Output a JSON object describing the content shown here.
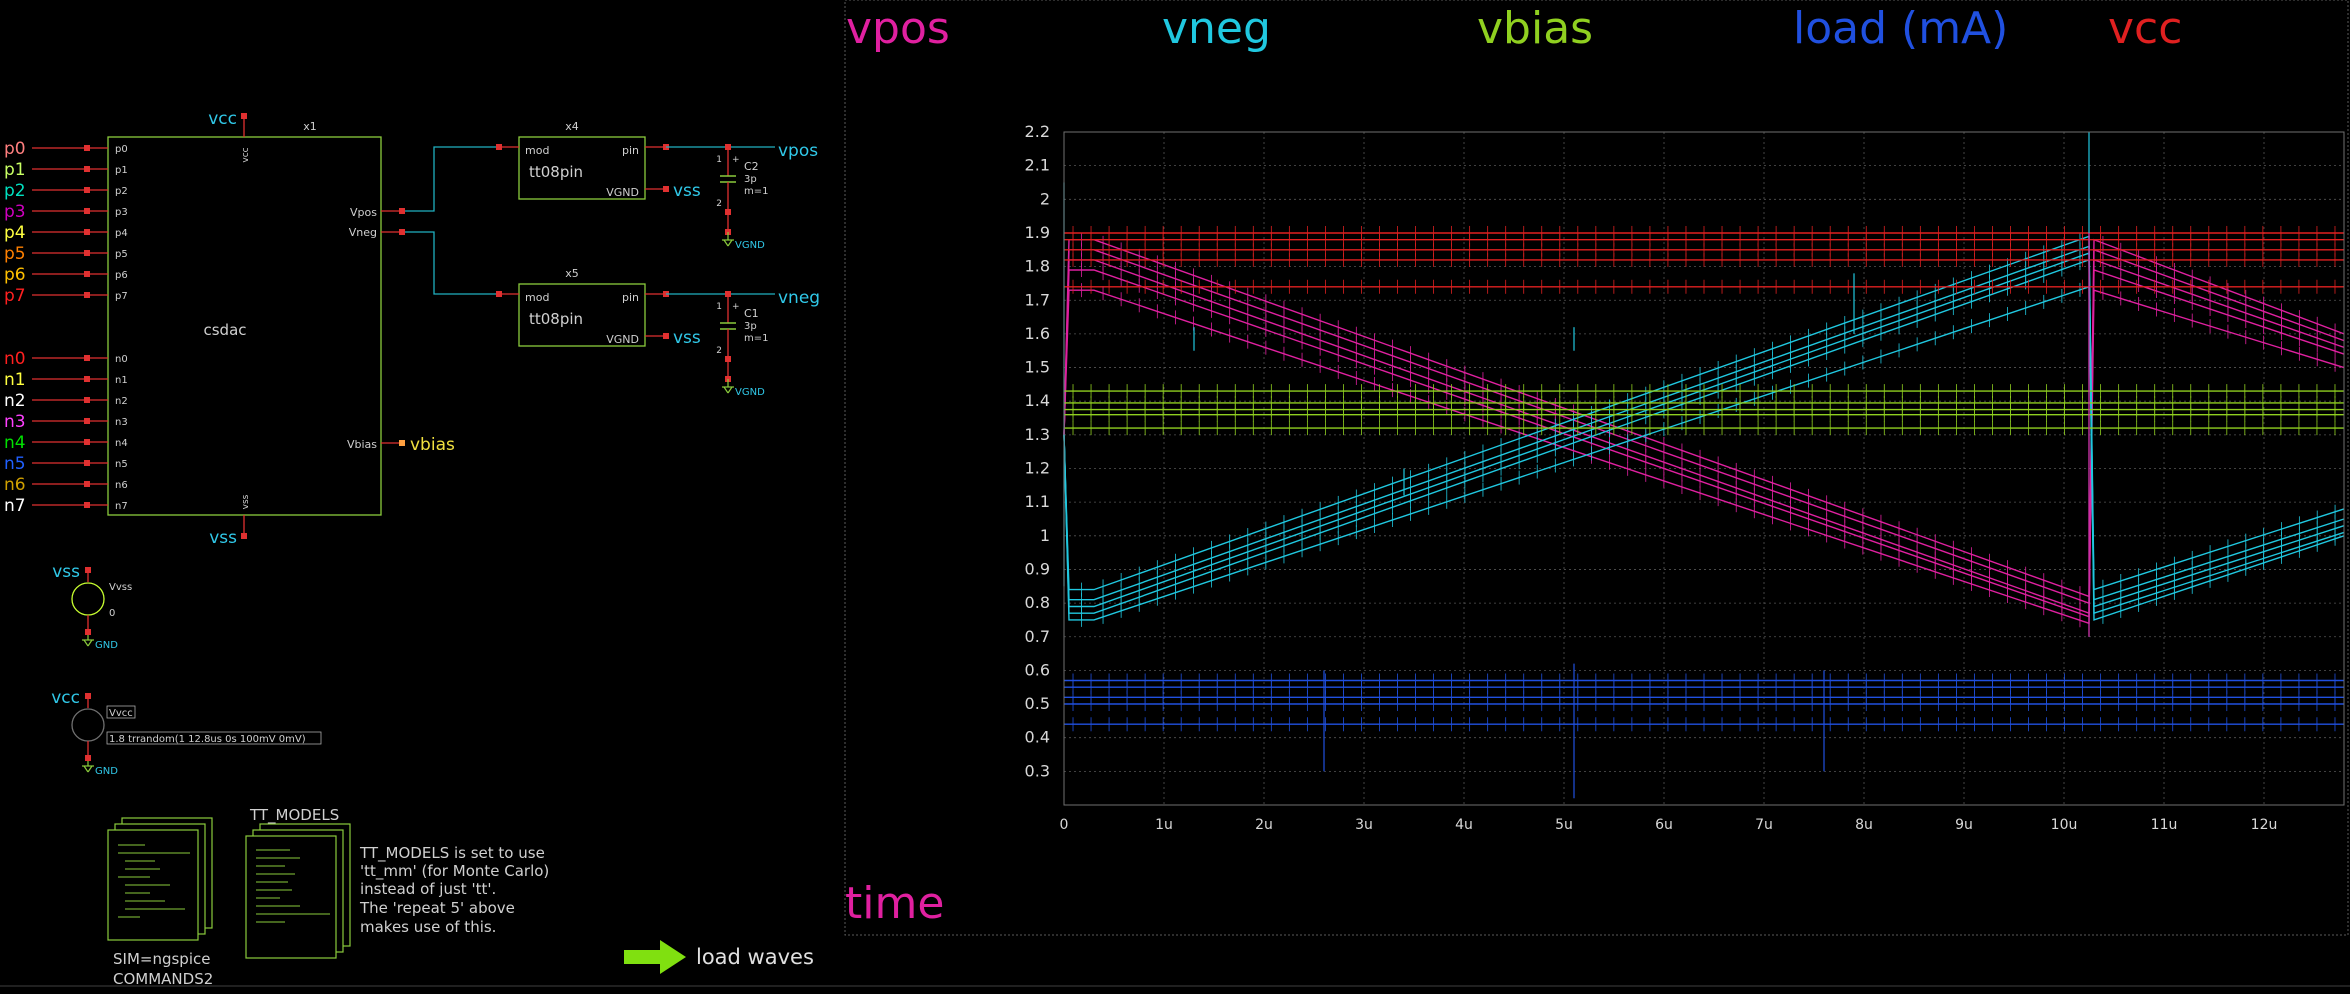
{
  "schematic": {
    "dac": {
      "name": "csdac",
      "instance": "x1",
      "p_pins": [
        "p0",
        "p1",
        "p2",
        "p3",
        "p4",
        "p5",
        "p6",
        "p7"
      ],
      "n_pins": [
        "n0",
        "n1",
        "n2",
        "n3",
        "n4",
        "n5",
        "n6",
        "n7"
      ],
      "p_labels": [
        "p0",
        "p1",
        "p2",
        "p3",
        "p4",
        "p5",
        "p6",
        "p7"
      ],
      "n_labels": [
        "n0",
        "n1",
        "n2",
        "n3",
        "n4",
        "n5",
        "n6",
        "n7"
      ],
      "p_colors": [
        "#ff7f7f",
        "#c8ff64",
        "#00e0c0",
        "#d000c0",
        "#ffff40",
        "#ff8000",
        "#ffc000",
        "#ff2020"
      ],
      "n_colors": [
        "#ff2020",
        "#ffff40",
        "#ffffff",
        "#ff40ff",
        "#00e000",
        "#2060ff",
        "#d0a000",
        "#ffffff"
      ],
      "vcc_pin": "vcc",
      "vss_pin": "vss",
      "vpos_pin": "Vpos",
      "vneg_pin": "Vneg",
      "vbias_pin": "Vbias",
      "vcc_label": "vcc",
      "vss_label": "vss",
      "vbias_label": "vbias"
    },
    "tt08_top": {
      "instance": "x4",
      "name": "tt08pin",
      "mod": "mod",
      "pin": "pin",
      "vgnd": "VGND",
      "vss_label": "vss",
      "out_label": "vpos"
    },
    "tt08_bot": {
      "instance": "x5",
      "name": "tt08pin",
      "mod": "mod",
      "pin": "pin",
      "vgnd": "VGND",
      "vss_label": "vss",
      "out_label": "vneg"
    },
    "cap_top": {
      "name": "C2",
      "value": "3p",
      "mult": "m=1",
      "gnd": "VGND",
      "pin1": "1",
      "pin2": "2",
      "plus": "+"
    },
    "cap_bot": {
      "name": "C1",
      "value": "3p",
      "mult": "m=1",
      "gnd": "VGND",
      "pin1": "1",
      "pin2": "2",
      "plus": "+"
    },
    "vss_source": {
      "net": "vss",
      "name": "Vvss",
      "value": "0",
      "gnd": "GND"
    },
    "vcc_source": {
      "net": "vcc",
      "name": "Vvcc",
      "value": "1.8 trrandom(1 12.8us 0s 100mV 0mV)",
      "gnd": "GND"
    },
    "tt_models": {
      "title": "TT_MODELS",
      "lines": [
        "TT_MODELS is set to use",
        "'tt_mm' (for Monte Carlo)",
        "instead of just 'tt'.",
        "The 'repeat 5' above",
        "makes use of this."
      ]
    },
    "sim": {
      "line1": "SIM=ngspice",
      "line2": "COMMANDS2"
    },
    "load_waves": "load waves"
  },
  "graph": {
    "legend": [
      {
        "name": "vpos",
        "color": "#e020a0"
      },
      {
        "name": "vneg",
        "color": "#20c8e0"
      },
      {
        "name": "vbias",
        "color": "#90d020"
      },
      {
        "name": "load (mA)",
        "color": "#2050e0"
      },
      {
        "name": "vcc",
        "color": "#e02020"
      }
    ],
    "time_label": "time"
  },
  "chart_data": {
    "type": "line",
    "title": "",
    "xlabel": "time",
    "ylabel": "",
    "xlim": [
      0,
      12.8
    ],
    "ylim": [
      0.2,
      2.2
    ],
    "x_ticks": [
      "0",
      "1u",
      "2u",
      "3u",
      "4u",
      "5u",
      "6u",
      "7u",
      "8u",
      "9u",
      "10u",
      "11u",
      "12u"
    ],
    "y_ticks": [
      "2.2",
      "2.1",
      "2",
      "1.9",
      "1.8",
      "1.7",
      "1.6",
      "1.5",
      "1.4",
      "1.3",
      "1.2",
      "1.1",
      "1",
      "0.9",
      "0.8",
      "0.7",
      "0.6",
      "0.5",
      "0.4",
      "0.3"
    ],
    "grid": true,
    "series": [
      {
        "name": "vpos",
        "color": "#e020a0",
        "runs": [
          {
            "x": [
              0,
              0.05,
              0.3,
              10.25,
              10.3,
              12.8
            ],
            "y": [
              1.3,
              1.88,
              1.88,
              0.82,
              1.88,
              1.6
            ]
          },
          {
            "x": [
              0,
              0.05,
              0.3,
              10.25,
              10.3,
              12.8
            ],
            "y": [
              1.3,
              1.85,
              1.85,
              0.8,
              1.85,
              1.58
            ]
          },
          {
            "x": [
              0,
              0.05,
              0.3,
              10.25,
              10.3,
              12.8
            ],
            "y": [
              1.3,
              1.82,
              1.82,
              0.77,
              1.82,
              1.56
            ]
          },
          {
            "x": [
              0,
              0.05,
              0.3,
              10.25,
              10.3,
              12.8
            ],
            "y": [
              1.3,
              1.79,
              1.79,
              0.76,
              1.79,
              1.54
            ]
          },
          {
            "x": [
              0,
              0.05,
              0.3,
              10.25,
              10.3,
              12.8
            ],
            "y": [
              1.3,
              1.73,
              1.73,
              0.74,
              1.73,
              1.5
            ]
          }
        ]
      },
      {
        "name": "vneg",
        "color": "#20c8e0",
        "runs": [
          {
            "x": [
              0,
              0.05,
              0.3,
              10.25,
              10.3,
              12.8
            ],
            "y": [
              1.3,
              0.84,
              0.84,
              1.89,
              0.84,
              1.08
            ]
          },
          {
            "x": [
              0,
              0.05,
              0.3,
              10.25,
              10.3,
              12.8
            ],
            "y": [
              1.3,
              0.81,
              0.81,
              1.86,
              0.81,
              1.05
            ]
          },
          {
            "x": [
              0,
              0.05,
              0.3,
              10.25,
              10.3,
              12.8
            ],
            "y": [
              1.3,
              0.79,
              0.79,
              1.84,
              0.79,
              1.03
            ]
          },
          {
            "x": [
              0,
              0.05,
              0.3,
              10.25,
              10.3,
              12.8
            ],
            "y": [
              1.3,
              0.77,
              0.77,
              1.82,
              0.77,
              1.01
            ]
          },
          {
            "x": [
              0,
              0.05,
              0.3,
              10.25,
              10.3,
              12.8
            ],
            "y": [
              1.3,
              0.75,
              0.75,
              1.74,
              0.75,
              1.0
            ]
          }
        ]
      },
      {
        "name": "vbias",
        "color": "#90d020",
        "levels": [
          1.43,
          1.395,
          1.375,
          1.36,
          1.32
        ]
      },
      {
        "name": "load (mA)",
        "color": "#2050e0",
        "levels": [
          0.57,
          0.55,
          0.52,
          0.5,
          0.44
        ]
      },
      {
        "name": "vcc",
        "color": "#e02020",
        "levels": [
          1.9,
          1.88,
          1.85,
          1.82,
          1.74
        ]
      }
    ]
  }
}
